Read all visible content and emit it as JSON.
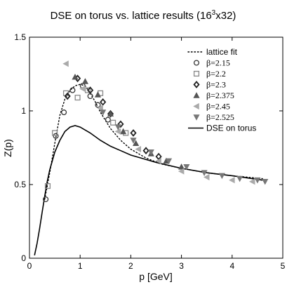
{
  "chart_data": {
    "type": "scatter",
    "title_main": "DSE on torus vs. lattice results (16",
    "title_sup": "3",
    "title_end": "x32)",
    "xlabel": "p [GeV]",
    "ylabel": "Z(p)",
    "xlim": [
      0,
      5
    ],
    "ylim": [
      0,
      1.5
    ],
    "xticks": [
      0,
      1,
      2,
      3,
      4,
      5
    ],
    "yticks": [
      0,
      0.5,
      1,
      1.5
    ],
    "ytick_labels": [
      "0",
      "0.5",
      "1",
      "1.5"
    ],
    "legend_position": "top-right",
    "series": [
      {
        "name": "lattice fit",
        "style": "dotted-line",
        "color": "#000000",
        "x": [
          0.3,
          0.4,
          0.5,
          0.6,
          0.7,
          0.8,
          0.9,
          1.0,
          1.1,
          1.2,
          1.3,
          1.4,
          1.6,
          1.8,
          2.0,
          2.3,
          2.6,
          3.0,
          3.5,
          4.0,
          4.6
        ],
        "y": [
          0.4,
          0.58,
          0.78,
          0.97,
          1.08,
          1.14,
          1.17,
          1.18,
          1.17,
          1.12,
          1.06,
          0.99,
          0.88,
          0.8,
          0.74,
          0.68,
          0.64,
          0.61,
          0.58,
          0.56,
          0.54
        ]
      },
      {
        "name": "β=2.15",
        "marker": "circle",
        "color": "#333333",
        "x": [
          0.32,
          0.52,
          0.68,
          0.85,
          1.05,
          1.2,
          1.35,
          1.55
        ],
        "y": [
          0.4,
          0.83,
          0.99,
          1.14,
          1.17,
          1.1,
          1.04,
          0.94
        ]
      },
      {
        "name": "β=2.2",
        "marker": "square",
        "color": "#888888",
        "x": [
          0.36,
          0.5,
          0.72,
          0.95,
          1.15,
          1.4,
          1.65,
          1.9
        ],
        "y": [
          0.49,
          0.85,
          1.12,
          1.09,
          1.14,
          1.12,
          0.92,
          0.85
        ]
      },
      {
        "name": "β=2.3",
        "marker": "diamond",
        "color": "#222222",
        "x": [
          0.75,
          0.95,
          1.2,
          1.45,
          1.6,
          1.8,
          2.05,
          2.3,
          2.55
        ],
        "y": [
          1.1,
          1.22,
          1.14,
          1.06,
          0.98,
          0.91,
          0.85,
          0.73,
          0.69
        ]
      },
      {
        "name": "β=2.375",
        "marker": "triangle-up",
        "color": "#555555",
        "x": [
          0.9,
          1.1,
          1.35,
          1.6,
          1.85,
          2.1,
          2.4,
          2.7,
          3.0
        ],
        "y": [
          1.23,
          1.2,
          1.11,
          0.98,
          0.86,
          0.78,
          0.71,
          0.66,
          0.62
        ]
      },
      {
        "name": "β=2.45",
        "marker": "triangle-left",
        "color": "#aaaaaa",
        "x": [
          0.72,
          1.05,
          1.4,
          1.75,
          2.15,
          2.55,
          3.0,
          3.5,
          4.0,
          4.4
        ],
        "y": [
          1.32,
          1.15,
          1.02,
          0.86,
          0.74,
          0.66,
          0.59,
          0.55,
          0.53,
          0.52
        ]
      },
      {
        "name": "β=2.525",
        "marker": "triangle-down",
        "color": "#777777",
        "x": [
          1.45,
          1.75,
          2.05,
          2.4,
          2.75,
          3.1,
          3.45,
          3.8,
          4.15,
          4.5,
          4.65
        ],
        "y": [
          0.99,
          0.89,
          0.8,
          0.72,
          0.66,
          0.62,
          0.58,
          0.56,
          0.54,
          0.53,
          0.52
        ]
      },
      {
        "name": "DSE on torus",
        "style": "solid-line",
        "color": "#000000",
        "x": [
          0.1,
          0.15,
          0.2,
          0.25,
          0.3,
          0.35,
          0.4,
          0.5,
          0.6,
          0.7,
          0.8,
          0.9,
          1.0,
          1.2,
          1.4,
          1.6,
          1.8,
          2.0,
          2.5,
          3.0,
          3.5,
          4.0,
          4.6
        ],
        "y": [
          0.02,
          0.1,
          0.2,
          0.31,
          0.42,
          0.52,
          0.6,
          0.72,
          0.8,
          0.86,
          0.89,
          0.9,
          0.89,
          0.85,
          0.8,
          0.76,
          0.73,
          0.7,
          0.65,
          0.61,
          0.58,
          0.56,
          0.53
        ]
      }
    ]
  }
}
